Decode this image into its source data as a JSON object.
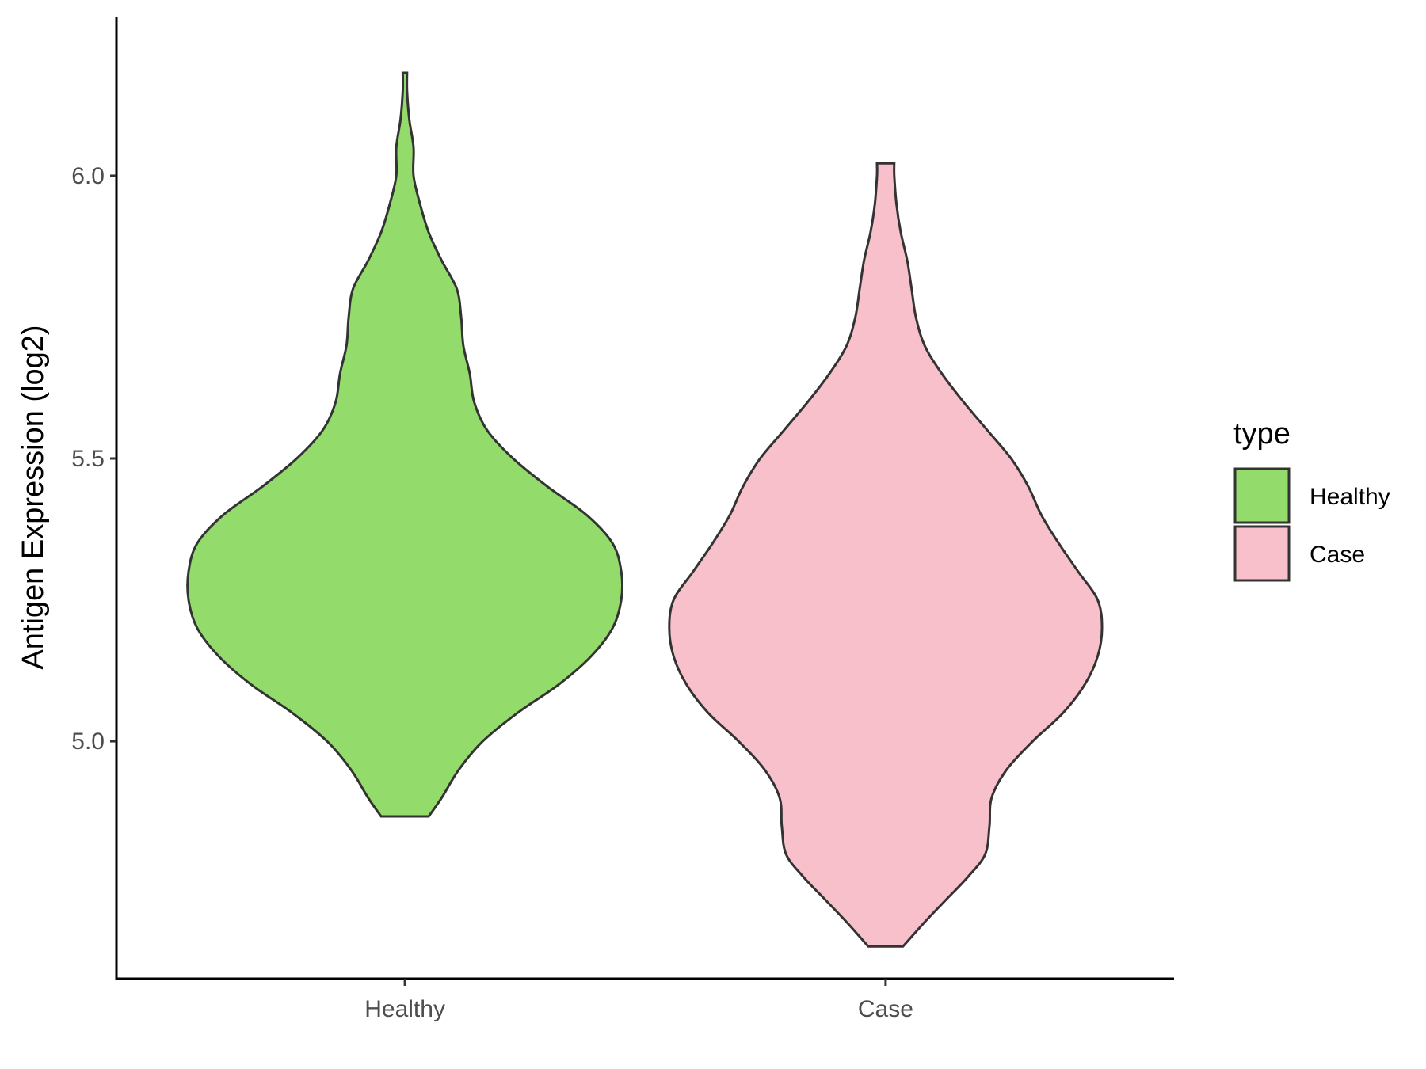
{
  "chart_data": {
    "type": "violin",
    "title": "",
    "xlabel": "",
    "ylabel": "Antigen Expression (log2)",
    "ylim": [
      4.58,
      6.28
    ],
    "yticks": [
      "5.0",
      "5.5",
      "6.0"
    ],
    "categories": [
      "Healthy",
      "Case"
    ],
    "grid": false,
    "legend": {
      "title": "type",
      "position": "right",
      "entries": [
        "Healthy",
        "Case"
      ]
    },
    "colors": {
      "Healthy": "#93dc6b",
      "Case": "#f7c0cb",
      "outline": "#333333"
    },
    "series": [
      {
        "name": "Healthy",
        "min": 4.867,
        "max": 6.182,
        "density": [
          [
            4.867,
            0.11
          ],
          [
            4.9,
            0.17
          ],
          [
            4.95,
            0.25
          ],
          [
            5.0,
            0.36
          ],
          [
            5.05,
            0.52
          ],
          [
            5.1,
            0.71
          ],
          [
            5.15,
            0.86
          ],
          [
            5.2,
            0.96
          ],
          [
            5.25,
            1.0
          ],
          [
            5.3,
            1.0
          ],
          [
            5.35,
            0.96
          ],
          [
            5.4,
            0.84
          ],
          [
            5.45,
            0.66
          ],
          [
            5.5,
            0.5
          ],
          [
            5.55,
            0.38
          ],
          [
            5.6,
            0.32
          ],
          [
            5.65,
            0.3
          ],
          [
            5.7,
            0.27
          ],
          [
            5.75,
            0.26
          ],
          [
            5.8,
            0.24
          ],
          [
            5.85,
            0.17
          ],
          [
            5.9,
            0.11
          ],
          [
            5.95,
            0.07
          ],
          [
            6.0,
            0.04
          ],
          [
            6.05,
            0.04
          ],
          [
            6.1,
            0.02
          ],
          [
            6.15,
            0.01
          ],
          [
            6.182,
            0.01
          ]
        ]
      },
      {
        "name": "Case",
        "min": 4.637,
        "max": 6.022,
        "density": [
          [
            4.637,
            0.08
          ],
          [
            4.68,
            0.18
          ],
          [
            4.72,
            0.28
          ],
          [
            4.76,
            0.38
          ],
          [
            4.8,
            0.46
          ],
          [
            4.85,
            0.48
          ],
          [
            4.9,
            0.49
          ],
          [
            4.95,
            0.56
          ],
          [
            5.0,
            0.68
          ],
          [
            5.05,
            0.82
          ],
          [
            5.1,
            0.92
          ],
          [
            5.15,
            0.98
          ],
          [
            5.2,
            1.0
          ],
          [
            5.25,
            0.98
          ],
          [
            5.3,
            0.89
          ],
          [
            5.35,
            0.8
          ],
          [
            5.4,
            0.72
          ],
          [
            5.45,
            0.66
          ],
          [
            5.5,
            0.58
          ],
          [
            5.55,
            0.47
          ],
          [
            5.6,
            0.36
          ],
          [
            5.65,
            0.26
          ],
          [
            5.7,
            0.18
          ],
          [
            5.75,
            0.14
          ],
          [
            5.8,
            0.12
          ],
          [
            5.85,
            0.1
          ],
          [
            5.9,
            0.07
          ],
          [
            5.95,
            0.05
          ],
          [
            6.0,
            0.04
          ],
          [
            6.022,
            0.04
          ]
        ]
      }
    ]
  }
}
